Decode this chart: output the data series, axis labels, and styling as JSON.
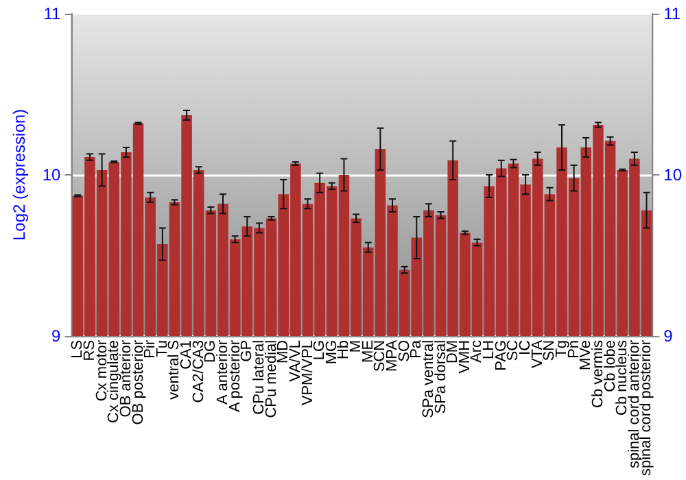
{
  "chart_data": {
    "type": "bar",
    "ylabel": "Log2 (expression)",
    "categories": [
      "LS",
      "RS",
      "Cx motor",
      "Cx cingulate",
      "OB anterior",
      "OB posterior",
      "Pir",
      "Tu",
      "ventral S",
      "CA1",
      "CA2/CA3",
      "DG",
      "A anterior",
      "A posterior",
      "GP",
      "CPu lateral",
      "CPu medial",
      "MD",
      "VA/VL",
      "VPM/VPL",
      "LG",
      "MG",
      "Hb",
      "M",
      "ME",
      "SCN",
      "MPA",
      "SO",
      "Pa",
      "SPa ventral",
      "SPa dorsal",
      "DM",
      "VMH",
      "Arc",
      "LH",
      "PAG",
      "SC",
      "IC",
      "VTA",
      "SN",
      "Tg",
      "Pn",
      "MVe",
      "Cb vermis",
      "Cb lobe",
      "Cb nucleus",
      "spinal cord anterior",
      "spinal cord posterior"
    ],
    "values": [
      9.87,
      10.11,
      10.03,
      10.08,
      10.14,
      10.32,
      9.86,
      9.57,
      9.83,
      10.37,
      10.03,
      9.78,
      9.82,
      9.6,
      9.68,
      9.67,
      9.73,
      9.88,
      10.07,
      9.82,
      9.95,
      9.93,
      10.0,
      9.73,
      9.55,
      10.16,
      9.81,
      9.41,
      9.61,
      9.78,
      9.75,
      10.09,
      9.64,
      9.58,
      9.93,
      10.04,
      10.07,
      9.94,
      10.1,
      9.88,
      10.17,
      9.98,
      10.17,
      10.31,
      10.21,
      10.03,
      10.1,
      9.78
    ],
    "errors": [
      0.005,
      0.02,
      0.1,
      0.005,
      0.03,
      0.005,
      0.03,
      0.1,
      0.015,
      0.03,
      0.02,
      0.02,
      0.06,
      0.02,
      0.06,
      0.03,
      0.01,
      0.09,
      0.01,
      0.03,
      0.06,
      0.02,
      0.1,
      0.025,
      0.03,
      0.13,
      0.04,
      0.02,
      0.13,
      0.04,
      0.02,
      0.12,
      0.01,
      0.02,
      0.07,
      0.05,
      0.025,
      0.06,
      0.04,
      0.04,
      0.14,
      0.08,
      0.06,
      0.015,
      0.025,
      0.005,
      0.04,
      0.11
    ],
    "color": "#b03030",
    "ylim": [
      9,
      11
    ],
    "yticks": [
      9,
      10,
      11
    ],
    "y2lim": [
      9,
      11
    ],
    "y2ticks": [
      9,
      10,
      11
    ],
    "grid": "y"
  }
}
